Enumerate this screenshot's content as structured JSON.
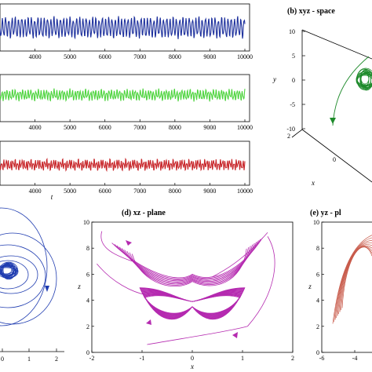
{
  "chart_data": [
    {
      "id": "ts_x",
      "type": "line",
      "xlabel": "",
      "xticks": [
        4000,
        5000,
        6000,
        7000,
        8000,
        9000,
        10000
      ],
      "xlim": [
        3000,
        10000
      ],
      "color": "#1c2f9c"
    },
    {
      "id": "ts_y",
      "type": "line",
      "xlabel": "",
      "xticks": [
        4000,
        5000,
        6000,
        7000,
        8000,
        9000,
        10000
      ],
      "xlim": [
        3000,
        10000
      ],
      "color": "#4fd43f"
    },
    {
      "id": "ts_z",
      "type": "line",
      "xlabel": "t",
      "xticks": [
        4000,
        5000,
        6000,
        7000,
        8000,
        9000,
        10000
      ],
      "xlim": [
        3000,
        10000
      ],
      "color": "#c8282c"
    },
    {
      "id": "xyz",
      "type": "line",
      "title": "(b) xyz - space",
      "ylabel": "y",
      "xlabel": "x",
      "yticks": [
        "10",
        "5",
        "0",
        "-5",
        "-10"
      ],
      "xticks": [
        "2",
        "0"
      ],
      "color": "#1d8a2a"
    },
    {
      "id": "xy",
      "type": "line",
      "xticks": [
        0,
        1,
        2
      ],
      "xlim": [
        -0.2,
        2.2
      ],
      "color": "#1f3cb0"
    },
    {
      "id": "xz",
      "type": "line",
      "title": "(d) xz - plane",
      "xlabel": "x",
      "ylabel": "z",
      "xticks": [
        -2,
        -1,
        0,
        1,
        2
      ],
      "yticks": [
        0,
        2,
        4,
        6,
        8,
        10
      ],
      "xlim": [
        -2,
        2
      ],
      "ylim": [
        0,
        10
      ],
      "color": "#b52bb0"
    },
    {
      "id": "yz",
      "type": "line",
      "title": "(e) yz - pl",
      "ylabel": "z",
      "xticks": [
        -6,
        -4
      ],
      "yticks": [
        0,
        2,
        4,
        6,
        8,
        10
      ],
      "xlim": [
        -6,
        1
      ],
      "ylim": [
        0,
        10
      ],
      "color": "#c85a4a"
    }
  ]
}
